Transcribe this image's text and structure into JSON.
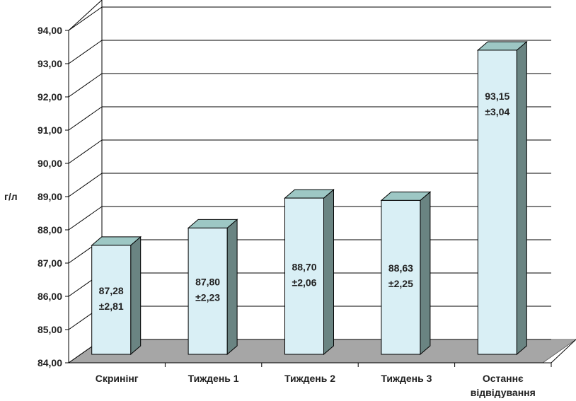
{
  "colors": {
    "bar_front": "#d9eff5",
    "bar_top": "#9dc7c4",
    "bar_side": "#6a8482",
    "floor": "#a6a6a6",
    "grid": "#000000"
  },
  "chart_data": {
    "type": "bar",
    "categories": [
      "Скринінг",
      "Тиждень 1",
      "Тиждень 2",
      "Тиждень 3",
      [
        "Останнє",
        "відвідування"
      ]
    ],
    "values": [
      87.28,
      87.8,
      88.7,
      88.63,
      93.15
    ],
    "errors": [
      2.81,
      2.23,
      2.06,
      2.25,
      3.04
    ],
    "value_labels": [
      "87,28",
      "87,80",
      "88,70",
      "88,63",
      "93,15"
    ],
    "error_labels": [
      "±2,81",
      "±2,23",
      "±2,06",
      "±2,25",
      "±3,04"
    ],
    "ylabel": "г/л",
    "ylim": [
      84,
      94
    ],
    "yticks": [
      "84,00",
      "85,00",
      "86,00",
      "87,00",
      "88,00",
      "89,00",
      "90,00",
      "91,00",
      "92,00",
      "93,00",
      "94,00"
    ],
    "grid": true,
    "style": "3d-column"
  }
}
